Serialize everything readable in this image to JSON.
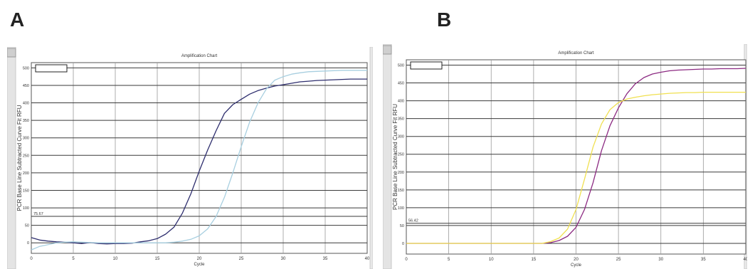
{
  "panels": {
    "a_label": "A",
    "b_label": "B"
  },
  "chart_data": [
    {
      "type": "line",
      "title": "Amplification Chart",
      "xlabel": "Cycle",
      "ylabel": "PCR Base Line Subtracted Curve Fit RFU",
      "xlim": [
        0,
        40
      ],
      "ylim": [
        -30,
        515
      ],
      "xticks": [
        "0",
        "5",
        "10",
        "15",
        "20",
        "25",
        "30",
        "35",
        "40"
      ],
      "yticks": [
        "0",
        "50",
        "100",
        "150",
        "200",
        "250",
        "300",
        "350",
        "400",
        "450",
        "500"
      ],
      "threshold": {
        "label": "75.67",
        "value": 75.67
      },
      "grid": true,
      "legend": "top-left (empty box)",
      "series": [
        {
          "color": "#2e2e6e",
          "x": [
            0,
            1,
            2,
            3,
            4,
            5,
            6,
            7,
            8,
            9,
            10,
            11,
            12,
            13,
            14,
            15,
            16,
            17,
            18,
            19,
            20,
            21,
            22,
            23,
            24,
            25,
            26,
            27,
            28,
            29,
            30,
            31,
            32,
            33,
            34,
            35,
            36,
            37,
            38,
            39,
            40
          ],
          "y": [
            15,
            8,
            5,
            3,
            2,
            0,
            -2,
            1,
            -2,
            -3,
            -2,
            -2,
            -1,
            3,
            6,
            12,
            25,
            45,
            85,
            140,
            205,
            265,
            320,
            370,
            395,
            410,
            425,
            435,
            442,
            448,
            452,
            456,
            460,
            462,
            464,
            465,
            466,
            467,
            468,
            468,
            468
          ]
        },
        {
          "color": "#a8cfe0",
          "x": [
            0,
            1,
            2,
            3,
            4,
            5,
            6,
            7,
            8,
            9,
            10,
            11,
            12,
            13,
            14,
            15,
            16,
            17,
            18,
            19,
            20,
            21,
            22,
            23,
            24,
            25,
            26,
            27,
            28,
            29,
            30,
            31,
            32,
            33,
            34,
            35,
            36,
            37,
            38,
            39,
            40
          ],
          "y": [
            -20,
            -10,
            -5,
            0,
            2,
            3,
            2,
            1,
            0,
            0,
            0,
            0,
            0,
            0,
            0,
            0,
            0,
            2,
            5,
            10,
            20,
            40,
            75,
            130,
            200,
            275,
            345,
            400,
            440,
            465,
            475,
            482,
            486,
            489,
            490,
            491,
            492,
            493,
            493,
            493,
            493
          ]
        }
      ]
    },
    {
      "type": "line",
      "title": "Amplification Chart",
      "xlabel": "Cycle",
      "ylabel": "PCR Base Line Subtracted Curve Fit RFU",
      "xlim": [
        0,
        40
      ],
      "ylim": [
        -30,
        515
      ],
      "xticks": [
        "0",
        "5",
        "10",
        "15",
        "20",
        "25",
        "30",
        "35",
        "40"
      ],
      "yticks": [
        "0",
        "50",
        "100",
        "150",
        "200",
        "250",
        "300",
        "350",
        "400",
        "450",
        "500"
      ],
      "threshold": {
        "label": "56.42",
        "value": 56.42
      },
      "grid": true,
      "legend": "top-left (empty box)",
      "series": [
        {
          "color": "#8c2a82",
          "x": [
            0,
            1,
            2,
            3,
            4,
            5,
            6,
            7,
            8,
            9,
            10,
            11,
            12,
            13,
            14,
            15,
            16,
            17,
            18,
            19,
            20,
            21,
            22,
            23,
            24,
            25,
            26,
            27,
            28,
            29,
            30,
            31,
            32,
            33,
            34,
            35,
            36,
            37,
            38,
            39,
            40
          ],
          "y": [
            0,
            0,
            0,
            0,
            0,
            0,
            0,
            0,
            0,
            0,
            0,
            0,
            0,
            0,
            0,
            0,
            0,
            2,
            8,
            20,
            45,
            95,
            170,
            260,
            330,
            380,
            420,
            448,
            465,
            475,
            480,
            484,
            486,
            487,
            488,
            489,
            489,
            490,
            490,
            490,
            491
          ]
        },
        {
          "color": "#f0e050",
          "x": [
            0,
            1,
            2,
            3,
            4,
            5,
            6,
            7,
            8,
            9,
            10,
            11,
            12,
            13,
            14,
            15,
            16,
            17,
            18,
            19,
            20,
            21,
            22,
            23,
            24,
            25,
            26,
            27,
            28,
            29,
            30,
            31,
            32,
            33,
            34,
            35,
            36,
            37,
            38,
            39,
            40
          ],
          "y": [
            0,
            0,
            0,
            0,
            0,
            0,
            0,
            0,
            0,
            0,
            0,
            0,
            0,
            0,
            0,
            0,
            0,
            5,
            15,
            40,
            95,
            180,
            270,
            335,
            375,
            395,
            405,
            410,
            414,
            417,
            419,
            421,
            422,
            423,
            423,
            424,
            424,
            424,
            424,
            424,
            424
          ]
        }
      ]
    }
  ]
}
